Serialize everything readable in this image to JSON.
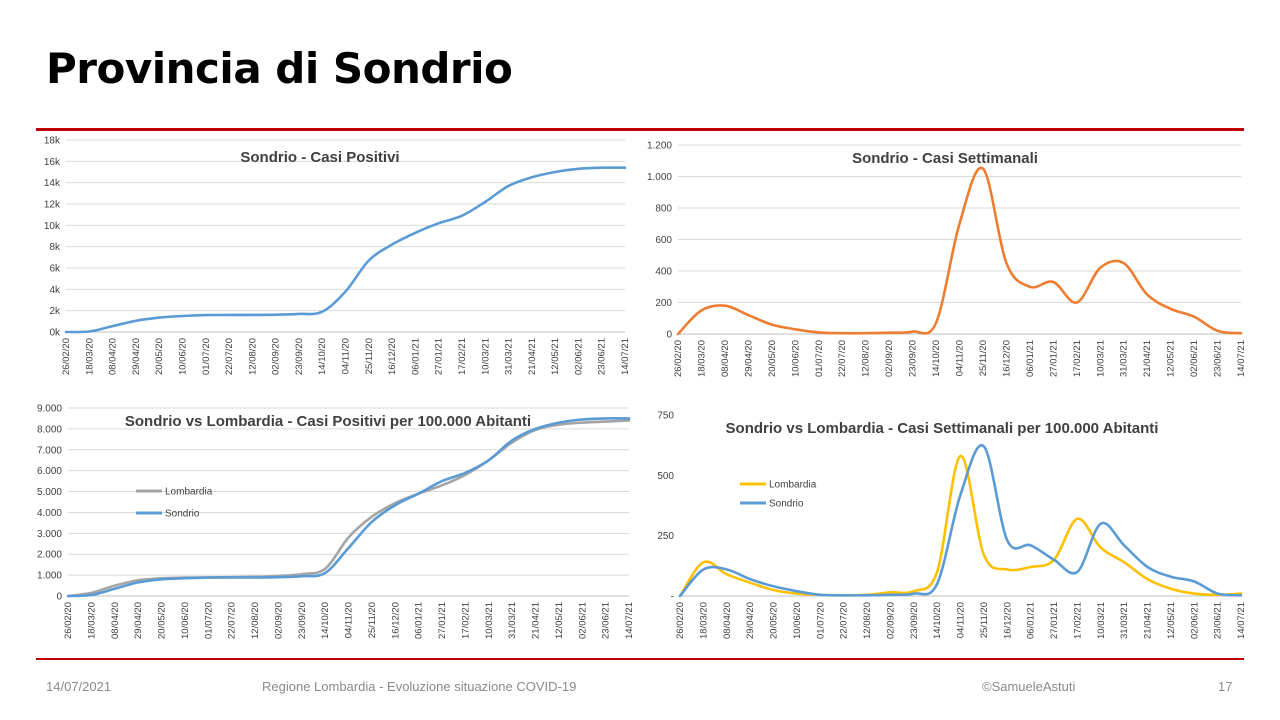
{
  "page": {
    "title": "Provincia di Sondrio",
    "footer": {
      "date": "14/07/2021",
      "source": "Regione Lombardia - Evoluzione situazione COVID-19",
      "author": "©SamueleAstuti",
      "page_number": "17"
    }
  },
  "colors": {
    "accent_rule": "#c00000",
    "sondrio": "#5b9bd5",
    "sondrio_weekly": "#ed7d31",
    "lombardia_cumulative": "#a5a5a5",
    "lombardia_weekly": "#ffc000",
    "grid": "#d9d9d9"
  },
  "x_dates": [
    "26/02/20",
    "18/03/20",
    "08/04/20",
    "29/04/20",
    "20/05/20",
    "10/06/20",
    "01/07/20",
    "22/07/20",
    "12/08/20",
    "02/09/20",
    "23/09/20",
    "14/10/20",
    "04/11/20",
    "25/11/20",
    "16/12/20",
    "06/01/21",
    "27/01/21",
    "17/02/21",
    "10/03/21",
    "31/03/21",
    "21/04/21",
    "12/05/21",
    "02/06/21",
    "23/06/21",
    "14/07/21"
  ],
  "chart_data": [
    {
      "type": "line",
      "title": "Sondrio - Casi Positivi",
      "xlabel": "",
      "ylabel": "",
      "ylim": [
        0,
        18000
      ],
      "y_ticks": [
        0,
        2000,
        4000,
        6000,
        8000,
        10000,
        12000,
        14000,
        16000,
        18000
      ],
      "y_tick_labels": [
        "0k",
        "2k",
        "4k",
        "6k",
        "8k",
        "10k",
        "12k",
        "14k",
        "16k",
        "18k"
      ],
      "grid": true,
      "series": [
        {
          "color": "#5b9bd5",
          "values": [
            0,
            50,
            550,
            1050,
            1350,
            1500,
            1580,
            1600,
            1600,
            1620,
            1700,
            1900,
            3800,
            6700,
            8200,
            9300,
            10200,
            10900,
            12200,
            13700,
            14500,
            15000,
            15300,
            15400,
            15400
          ]
        }
      ]
    },
    {
      "type": "line",
      "title": "Sondrio - Casi Settimanali",
      "xlabel": "",
      "ylabel": "",
      "ylim": [
        0,
        1200
      ],
      "y_ticks": [
        0,
        200,
        400,
        600,
        800,
        1000,
        1200
      ],
      "y_tick_labels": [
        "0",
        "200",
        "400",
        "600",
        "800",
        "1.000",
        "1.200"
      ],
      "grid": true,
      "series": [
        {
          "color": "#ed7d31",
          "values": [
            0,
            150,
            180,
            120,
            60,
            30,
            10,
            5,
            5,
            8,
            15,
            70,
            700,
            1050,
            450,
            300,
            330,
            200,
            420,
            450,
            250,
            160,
            110,
            20,
            5
          ]
        }
      ]
    },
    {
      "type": "line",
      "title": "Sondrio vs Lombardia - Casi Positivi per 100.000 Abitanti",
      "xlabel": "",
      "ylabel": "",
      "ylim": [
        0,
        9000
      ],
      "y_ticks": [
        0,
        1000,
        2000,
        3000,
        4000,
        5000,
        6000,
        7000,
        8000,
        9000
      ],
      "y_tick_labels": [
        "0",
        "1.000",
        "2.000",
        "3.000",
        "4.000",
        "5.000",
        "6.000",
        "7.000",
        "8.000",
        "9.000"
      ],
      "grid": true,
      "legend": "left",
      "series": [
        {
          "name": "Lombardia",
          "color": "#a5a5a5",
          "values": [
            0,
            150,
            500,
            750,
            850,
            880,
            890,
            900,
            920,
            960,
            1050,
            1300,
            2800,
            3800,
            4450,
            4900,
            5300,
            5800,
            6500,
            7350,
            7950,
            8200,
            8300,
            8350,
            8400
          ]
        },
        {
          "name": "Sondrio",
          "color": "#5b9bd5",
          "values": [
            0,
            50,
            350,
            650,
            800,
            850,
            880,
            890,
            890,
            900,
            950,
            1100,
            2300,
            3550,
            4350,
            4900,
            5500,
            5900,
            6500,
            7450,
            8000,
            8300,
            8450,
            8500,
            8500
          ]
        }
      ]
    },
    {
      "type": "line",
      "title": "Sondrio vs Lombardia - Casi Settimanali per 100.000 Abitanti",
      "xlabel": "",
      "ylabel": "",
      "ylim": [
        0,
        750
      ],
      "y_ticks": [
        0,
        250,
        500,
        750
      ],
      "y_tick_labels": [
        "-",
        "250",
        "500",
        "750"
      ],
      "grid": false,
      "legend": "left",
      "series": [
        {
          "name": "Lombardia",
          "color": "#ffc000",
          "values": [
            0,
            140,
            90,
            55,
            25,
            10,
            5,
            3,
            5,
            15,
            20,
            100,
            580,
            170,
            110,
            120,
            150,
            320,
            200,
            140,
            70,
            30,
            10,
            5,
            10
          ]
        },
        {
          "name": "Sondrio",
          "color": "#5b9bd5",
          "values": [
            0,
            110,
            110,
            70,
            40,
            20,
            5,
            3,
            3,
            5,
            10,
            50,
            420,
            620,
            230,
            210,
            150,
            100,
            300,
            210,
            120,
            80,
            60,
            10,
            3
          ]
        }
      ]
    }
  ]
}
